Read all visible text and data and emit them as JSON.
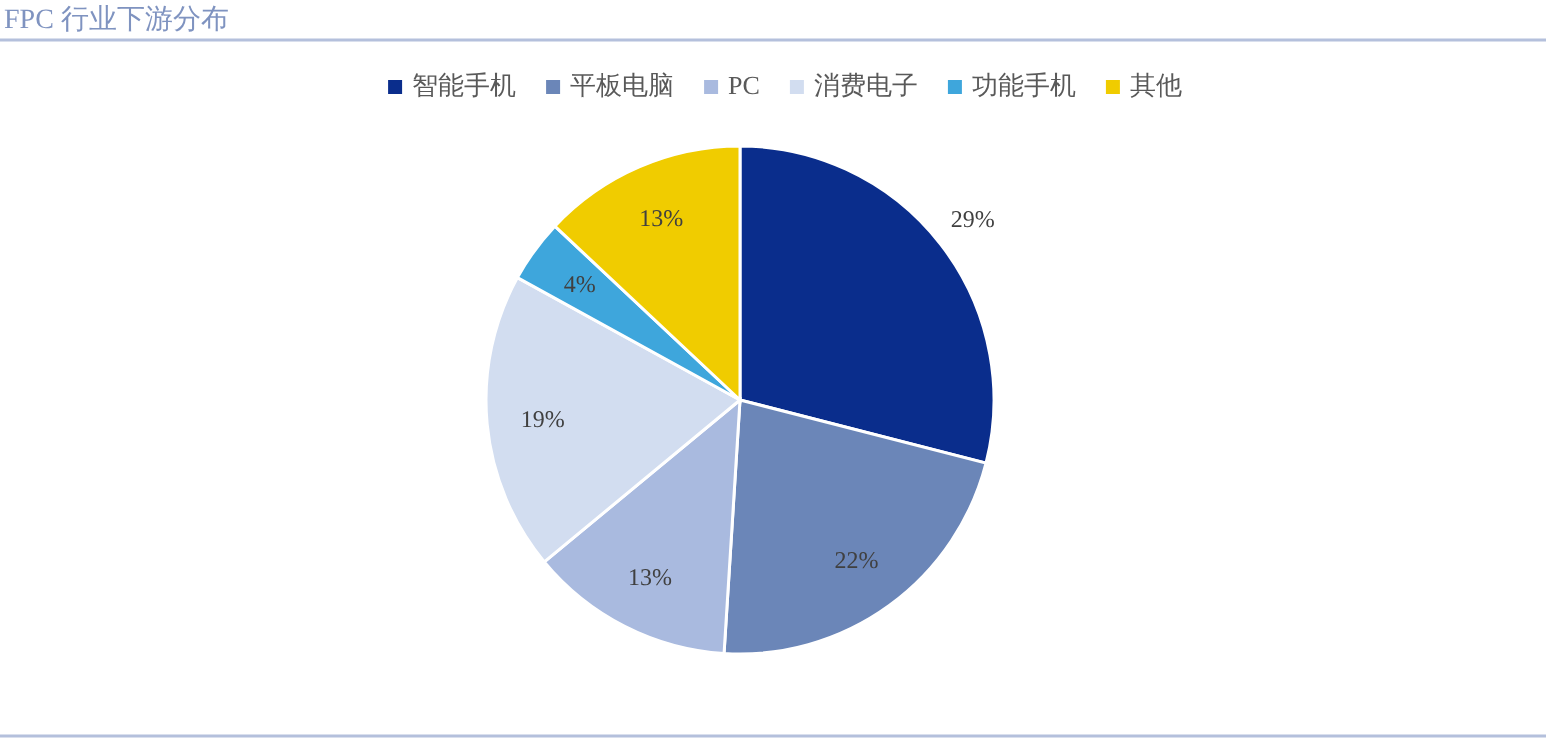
{
  "chart_data": {
    "type": "pie",
    "title": "FPC 行业下游分布",
    "categories": [
      "智能手机",
      "平板电脑",
      "PC",
      "消费电子",
      "功能手机",
      "其他"
    ],
    "values": [
      29,
      22,
      13,
      19,
      4,
      13
    ],
    "colors": [
      "#0a2d8c",
      "#6b86b8",
      "#a9badf",
      "#d2ddf0",
      "#3ea6dc",
      "#f0cc00"
    ],
    "value_labels": [
      "29%",
      "22%",
      "13%",
      "19%",
      "4%",
      "13%"
    ],
    "legend": "top"
  }
}
